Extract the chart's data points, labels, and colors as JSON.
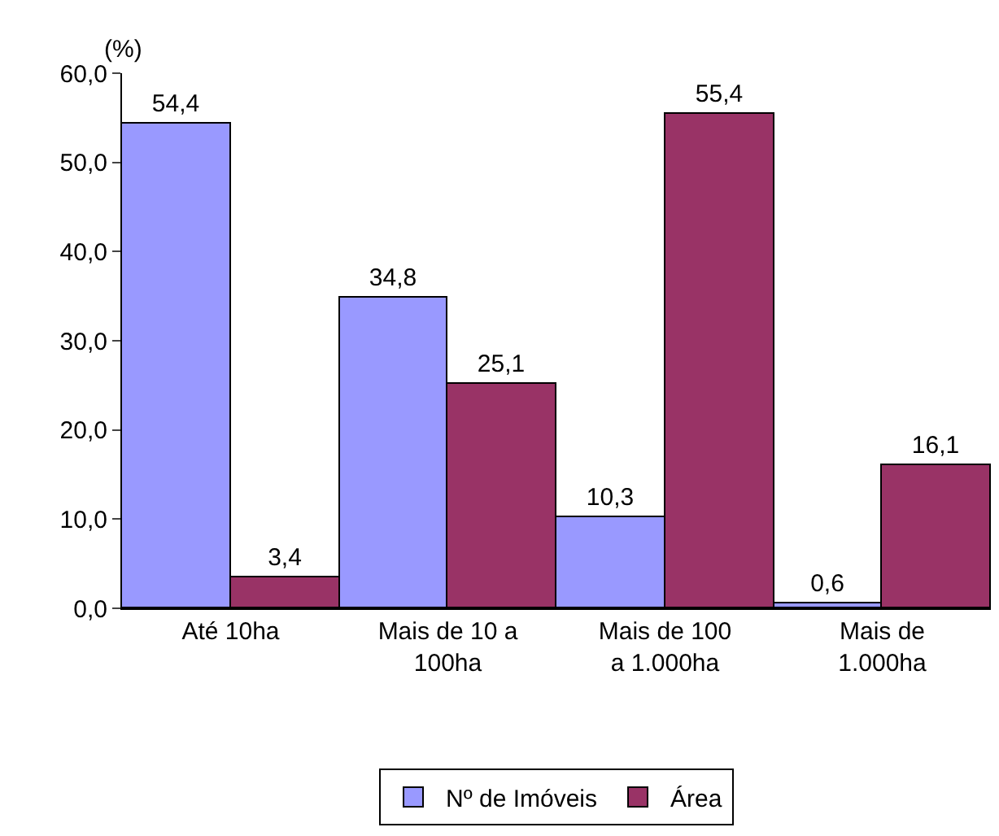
{
  "chart_data": {
    "type": "bar",
    "ylabel": "(%)",
    "categories": [
      "Até 10ha",
      "Mais de 10 a 100ha",
      "Mais de 100 a 1.000ha",
      "Mais de 1.000ha"
    ],
    "series": [
      {
        "name": "Nº de Imóveis",
        "color": "#9999ff",
        "values": [
          54.4,
          34.8,
          10.3,
          0.6
        ],
        "value_labels": [
          "54,4",
          "34,8",
          "10,3",
          "0,6"
        ]
      },
      {
        "name": "Área",
        "color": "#993366",
        "values": [
          3.4,
          25.1,
          55.4,
          16.1
        ],
        "value_labels": [
          "3,4",
          "25,1",
          "55,4",
          "16,1"
        ]
      }
    ],
    "ylim": [
      0,
      60
    ],
    "yticks": [
      {
        "value": 0,
        "label": "0,0"
      },
      {
        "value": 10,
        "label": "10,0"
      },
      {
        "value": 20,
        "label": "20,0"
      },
      {
        "value": 30,
        "label": "30,0"
      },
      {
        "value": 40,
        "label": "40,0"
      },
      {
        "value": 50,
        "label": "50,0"
      },
      {
        "value": 60,
        "label": "60,0"
      }
    ],
    "grid": false,
    "legend": "bottom"
  }
}
